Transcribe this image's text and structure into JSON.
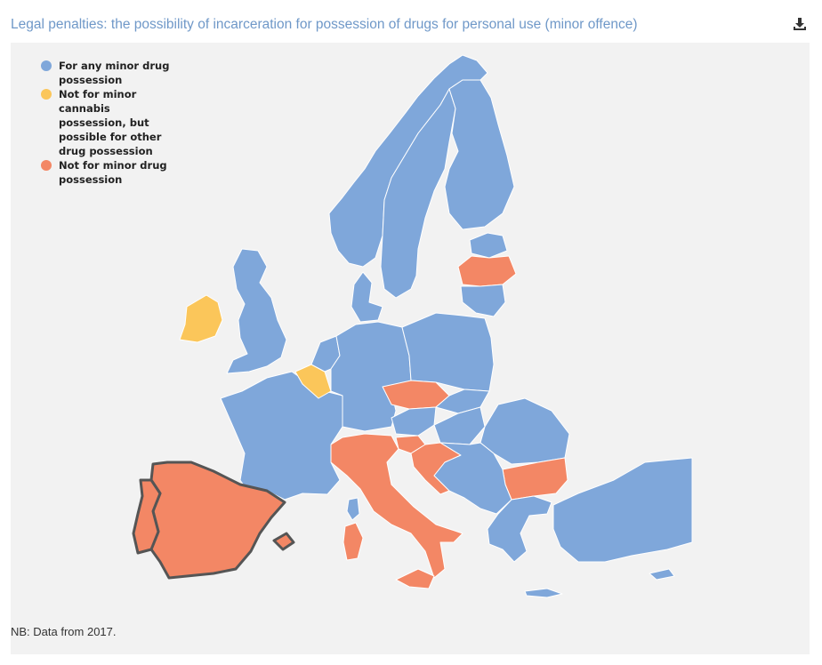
{
  "title": "Legal penalties: the possibility of incarceration for possession of drugs for personal use (minor offence)",
  "download_icon": "download-icon",
  "note": "NB: Data from 2017.",
  "colors": {
    "any": "#7fa7da",
    "not_cannabis": "#fbc65a",
    "none": "#f38765",
    "border": "#ffffff",
    "highlight_border": "#555555",
    "background": "#f2f2f2"
  },
  "legend": [
    {
      "key": "any",
      "label": "For any minor drug possession"
    },
    {
      "key": "not_cannabis",
      "label": "Not for minor cannabis possession, but possible for other drug possession"
    },
    {
      "key": "none",
      "label": "Not for minor drug possession"
    }
  ]
}
